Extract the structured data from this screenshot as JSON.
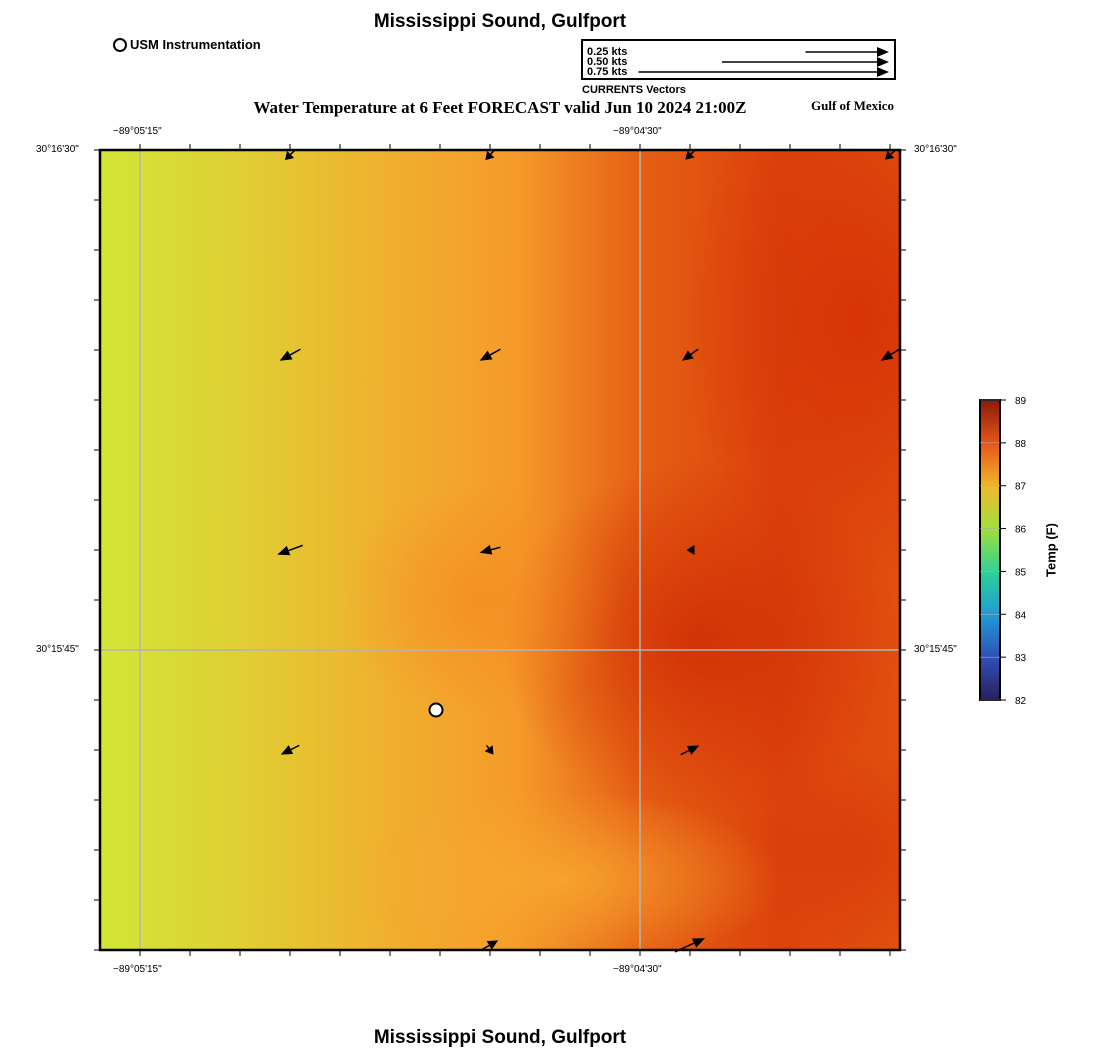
{
  "header": {
    "title": "Mississippi Sound, Gulfport",
    "subtitle": "Water Temperature at 6 Feet FORECAST valid Jun 10 2024 21:00Z",
    "region": "Gulf of Mexico",
    "footer_title": "Mississippi Sound, Gulfport"
  },
  "station_legend": {
    "label": "USM Instrumentation"
  },
  "vector_legend": {
    "title": "CURRENTS Vectors",
    "entries": [
      {
        "label": "0.25 kts",
        "speed": 0.25
      },
      {
        "label": "0.50 kts",
        "speed": 0.5
      },
      {
        "label": "0.75 kts",
        "speed": 0.75
      }
    ]
  },
  "axes": {
    "lon_ticks": [
      "−89°05'15\"",
      "−89°04'30\""
    ],
    "lat_ticks": [
      "30°16'30\"",
      "30°15'45\""
    ]
  },
  "colorbar": {
    "label": "Temp (F)",
    "min": 82,
    "max": 89,
    "ticks": [
      "89",
      "88",
      "87",
      "86",
      "85",
      "84",
      "83",
      "82"
    ]
  },
  "colors": {
    "cool": "#d2e636",
    "mid": "#f7a12a",
    "warm": "#d83b08",
    "grid": "#b4b4b4",
    "station_marker": "#ffffff"
  },
  "station": {
    "name": "USM Instrumentation"
  },
  "current_vectors": [
    {
      "col": 0,
      "row": 0,
      "u": -0.22,
      "v": -0.22
    },
    {
      "col": 1,
      "row": 0,
      "u": -0.2,
      "v": -0.22
    },
    {
      "col": 2,
      "row": 0,
      "u": -0.2,
      "v": -0.2
    },
    {
      "col": 3,
      "row": 0,
      "u": -0.22,
      "v": -0.2
    },
    {
      "col": 0,
      "row": 1,
      "u": -0.45,
      "v": -0.25
    },
    {
      "col": 1,
      "row": 1,
      "u": -0.45,
      "v": -0.25
    },
    {
      "col": 2,
      "row": 1,
      "u": -0.35,
      "v": -0.25
    },
    {
      "col": 3,
      "row": 1,
      "u": -0.4,
      "v": -0.25
    },
    {
      "col": 0,
      "row": 2,
      "u": -0.55,
      "v": -0.2
    },
    {
      "col": 1,
      "row": 2,
      "u": -0.45,
      "v": -0.12
    },
    {
      "col": 2,
      "row": 2,
      "u": -0.15,
      "v": 0.0
    },
    {
      "col": 3,
      "row": 2,
      "u": 0.0,
      "v": 0.0
    },
    {
      "col": 0,
      "row": 3,
      "u": -0.4,
      "v": -0.2
    },
    {
      "col": 1,
      "row": 3,
      "u": 0.15,
      "v": -0.2
    },
    {
      "col": 2,
      "row": 3,
      "u": 0.4,
      "v": 0.2
    },
    {
      "col": 3,
      "row": 3,
      "u": 0.0,
      "v": 0.0
    },
    {
      "col": 0,
      "row": 4,
      "u": 0.0,
      "v": 0.0
    },
    {
      "col": 1,
      "row": 4,
      "u": 0.35,
      "v": 0.2
    },
    {
      "col": 2,
      "row": 4,
      "u": 0.65,
      "v": 0.3
    },
    {
      "col": 3,
      "row": 4,
      "u": 0.0,
      "v": 0.0
    }
  ]
}
